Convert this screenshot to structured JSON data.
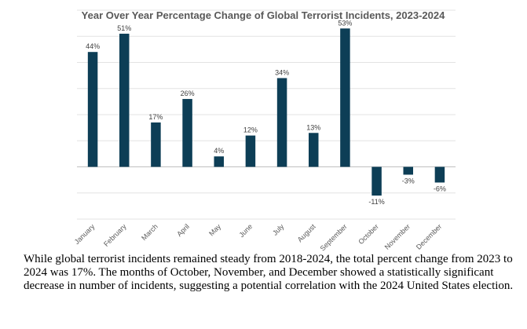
{
  "chart_data": {
    "type": "bar",
    "title": "Year Over Year Percentage Change of Global Terrorist Incidents, 2023-2024",
    "categories": [
      "January",
      "February",
      "March",
      "April",
      "May",
      "June",
      "July",
      "August",
      "September",
      "October",
      "November",
      "December"
    ],
    "values": [
      44,
      51,
      17,
      26,
      4,
      12,
      34,
      13,
      53,
      -11,
      -3,
      -6
    ],
    "data_labels": [
      "44%",
      "51%",
      "17%",
      "26%",
      "4%",
      "12%",
      "34%",
      "13%",
      "53%",
      "-11%",
      "-3%",
      "-6%"
    ],
    "ylim": [
      -20,
      60
    ],
    "grid": true,
    "bar_color": "#0d3e56",
    "xlabel": "",
    "ylabel": ""
  },
  "caption": "While global terrorist incidents remained steady from 2018-2024, the total percent change from 2023 to 2024 was 17%. The months of October, November, and December showed a statistically significant decrease in number of incidents, suggesting a potential correlation with the 2024 United States election."
}
